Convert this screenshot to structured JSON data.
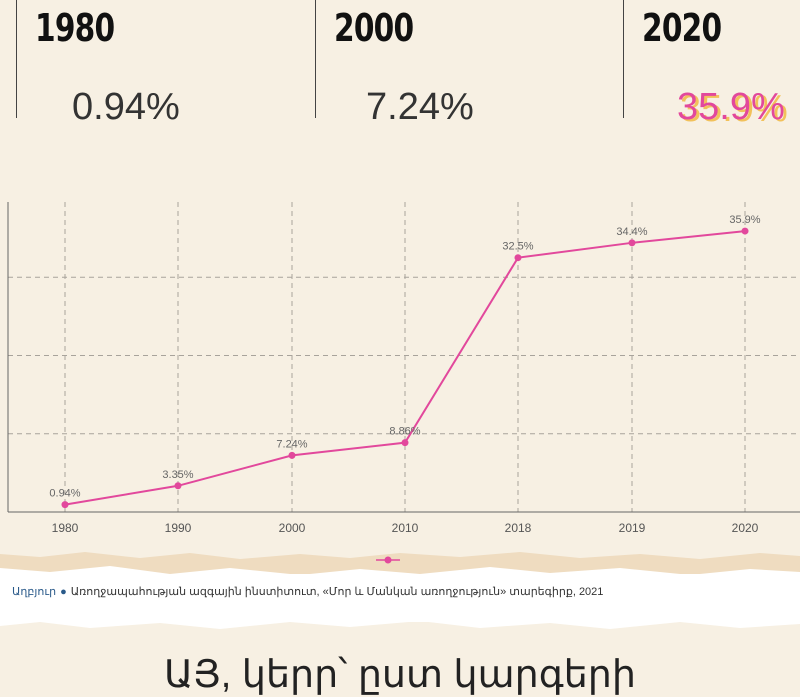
{
  "stats": [
    {
      "year": "1980",
      "value": "0.94%"
    },
    {
      "year": "2000",
      "value": "7.24%"
    },
    {
      "year": "2020",
      "value": "35.9%"
    }
  ],
  "chart_data": {
    "type": "line",
    "categories": [
      "1980",
      "1990",
      "2000",
      "2010",
      "2018",
      "2019",
      "2020"
    ],
    "values": [
      0.94,
      3.35,
      7.24,
      8.86,
      32.5,
      34.4,
      35.9
    ],
    "data_labels": [
      "0.94%",
      "3.35%",
      "7.24%",
      "8.86%",
      "32.5%",
      "34.4%",
      "35.9%"
    ],
    "ylim": [
      0,
      40
    ],
    "grid": true,
    "line_color": "#e2489c"
  },
  "source": {
    "label": "Աղբյուր",
    "text": "Առողջապահության ազգային ինստիտուտ, «Մոր և Մանկան առողջություն» տարեգիրք, 2021"
  },
  "bottom_heading": "ԱՅ, կերր՝ ըստ կարգերի"
}
